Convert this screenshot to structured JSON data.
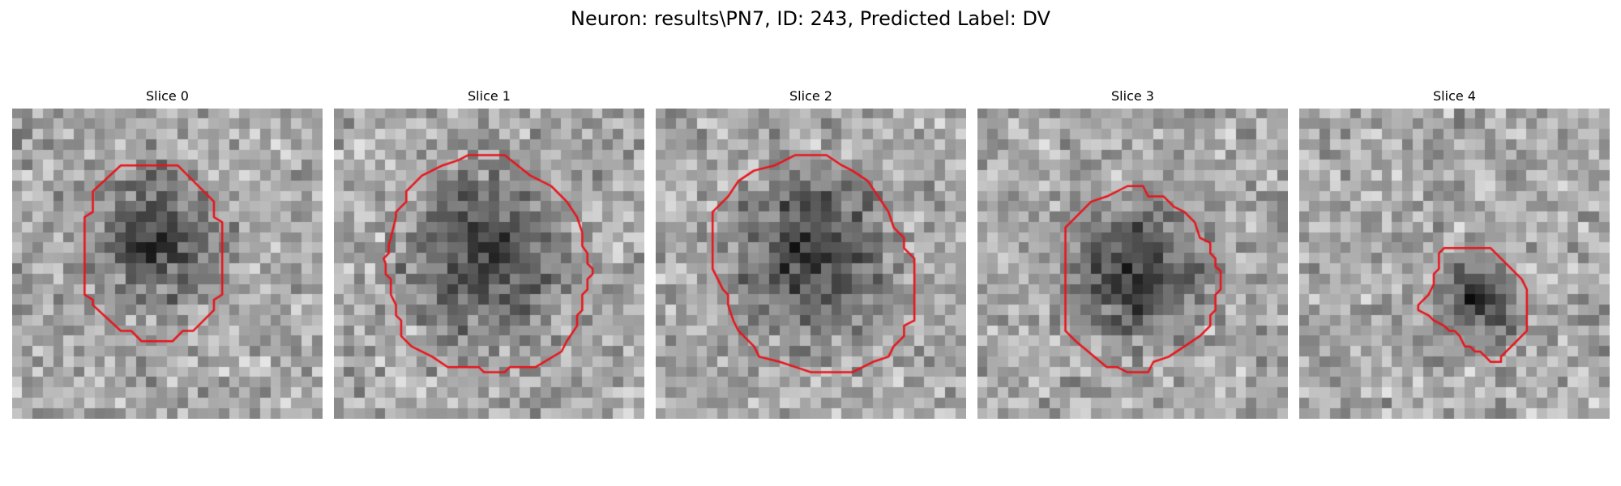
{
  "figure": {
    "title": "Neuron: results\\PN7, ID: 243, Predicted Label: DV",
    "background": "#ffffff"
  },
  "grid": {
    "size": 30,
    "colormap": "gray"
  },
  "contour": {
    "color": "#e8131a"
  },
  "slices": [
    {
      "title": "Slice 0",
      "dark_center": [
        14.0,
        12.5
      ],
      "dark_radius": 7.5,
      "seed": 11,
      "contour": [
        [
          13.5,
          5.5
        ],
        [
          16,
          5.5
        ],
        [
          19.5,
          9
        ],
        [
          19.5,
          10.5
        ],
        [
          20.3,
          11
        ],
        [
          20.3,
          18
        ],
        [
          19.5,
          18.5
        ],
        [
          19.5,
          19.5
        ],
        [
          17.5,
          21.5
        ],
        [
          16.5,
          21.5
        ],
        [
          15.5,
          22.5
        ],
        [
          12.5,
          22.5
        ],
        [
          11.5,
          21.5
        ],
        [
          10.5,
          21.5
        ],
        [
          7.8,
          19
        ],
        [
          7.8,
          18.5
        ],
        [
          7,
          18
        ],
        [
          7,
          10.5
        ],
        [
          7.8,
          10
        ],
        [
          7.8,
          8
        ],
        [
          10.5,
          5.5
        ]
      ]
    },
    {
      "title": "Slice 1",
      "dark_center": [
        14.5,
        14.5
      ],
      "dark_radius": 9.0,
      "seed": 23,
      "contour": [
        [
          13,
          4.5
        ],
        [
          16.5,
          4.5
        ],
        [
          19,
          6.5
        ],
        [
          21,
          7.5
        ],
        [
          22.5,
          9
        ],
        [
          23.5,
          10.5
        ],
        [
          24,
          12
        ],
        [
          24,
          13.3
        ],
        [
          24.5,
          14
        ],
        [
          24.5,
          15
        ],
        [
          25,
          15.5
        ],
        [
          25,
          16
        ],
        [
          24.5,
          16.5
        ],
        [
          24.5,
          17.5
        ],
        [
          24,
          18
        ],
        [
          24,
          19.5
        ],
        [
          23.5,
          20
        ],
        [
          23.5,
          21
        ],
        [
          22.5,
          22.5
        ],
        [
          22,
          23.5
        ],
        [
          19.5,
          25
        ],
        [
          17,
          25
        ],
        [
          16.5,
          25.5
        ],
        [
          14.5,
          25.5
        ],
        [
          14,
          25
        ],
        [
          11,
          25
        ],
        [
          9.5,
          24
        ],
        [
          7.5,
          23
        ],
        [
          6.5,
          22
        ],
        [
          6.5,
          20.5
        ],
        [
          6,
          20
        ],
        [
          6,
          19
        ],
        [
          5.5,
          18
        ],
        [
          5.5,
          16.5
        ],
        [
          5,
          16
        ],
        [
          5,
          15
        ],
        [
          4.8,
          14.5
        ],
        [
          5.3,
          14
        ],
        [
          5.3,
          13.2
        ],
        [
          5.5,
          12.5
        ],
        [
          6,
          10.5
        ],
        [
          6,
          10
        ],
        [
          7,
          9
        ],
        [
          7,
          8
        ],
        [
          8.5,
          6.5
        ],
        [
          10.5,
          5.5
        ],
        [
          12,
          5
        ]
      ]
    },
    {
      "title": "Slice 2",
      "dark_center": [
        15.0,
        14.0
      ],
      "dark_radius": 9.0,
      "seed": 37,
      "contour": [
        [
          13.5,
          4.5
        ],
        [
          16.5,
          4.5
        ],
        [
          18,
          5.5
        ],
        [
          19,
          6
        ],
        [
          20.5,
          7
        ],
        [
          21.5,
          8.5
        ],
        [
          22.5,
          10
        ],
        [
          23,
          11.5
        ],
        [
          24,
          12.5
        ],
        [
          24,
          13.5
        ],
        [
          25,
          14.5
        ],
        [
          25,
          20.5
        ],
        [
          24,
          21
        ],
        [
          24,
          22
        ],
        [
          23,
          23
        ],
        [
          22.5,
          24
        ],
        [
          21,
          24.5
        ],
        [
          19,
          25.5
        ],
        [
          15,
          25.5
        ],
        [
          13.5,
          25
        ],
        [
          12,
          24.5
        ],
        [
          10,
          24
        ],
        [
          9.5,
          23
        ],
        [
          8.5,
          22
        ],
        [
          8,
          21.5
        ],
        [
          7.5,
          20.5
        ],
        [
          7,
          19
        ],
        [
          7,
          18
        ],
        [
          6.5,
          17.5
        ],
        [
          6,
          16.5
        ],
        [
          5.5,
          15.5
        ],
        [
          5.5,
          10
        ],
        [
          7,
          8.5
        ],
        [
          8,
          7
        ],
        [
          9.5,
          6
        ],
        [
          11.5,
          5.5
        ],
        [
          12.5,
          5
        ]
      ]
    },
    {
      "title": "Slice 3",
      "dark_center": [
        15.5,
        16.0
      ],
      "dark_radius": 8.0,
      "seed": 53,
      "contour": [
        [
          14.5,
          7.5
        ],
        [
          16,
          7.5
        ],
        [
          16.5,
          8.5
        ],
        [
          18,
          8.5
        ],
        [
          19,
          9.5
        ],
        [
          20,
          10
        ],
        [
          21,
          11
        ],
        [
          21.5,
          12.5
        ],
        [
          22.5,
          13
        ],
        [
          22.5,
          14
        ],
        [
          23,
          14.5
        ],
        [
          23,
          15.3
        ],
        [
          23.5,
          15.7
        ],
        [
          23.5,
          17.5
        ],
        [
          23,
          18
        ],
        [
          23,
          19.5
        ],
        [
          22.5,
          20
        ],
        [
          22.5,
          21
        ],
        [
          21.5,
          22
        ],
        [
          20,
          23
        ],
        [
          18.5,
          24
        ],
        [
          17,
          24.5
        ],
        [
          16.5,
          25.5
        ],
        [
          14.5,
          25.5
        ],
        [
          13.5,
          25
        ],
        [
          12.5,
          25
        ],
        [
          9.5,
          22.5
        ],
        [
          8.5,
          21.5
        ],
        [
          8.5,
          11.5
        ],
        [
          11,
          9
        ],
        [
          12.5,
          8.5
        ]
      ]
    },
    {
      "title": "Slice 4",
      "dark_center": [
        17.5,
        18.5
      ],
      "dark_radius": 4.5,
      "seed": 71,
      "contour": [
        [
          14,
          13.5
        ],
        [
          18.5,
          13.5
        ],
        [
          20.5,
          15.5
        ],
        [
          21.5,
          16.5
        ],
        [
          22,
          17.5
        ],
        [
          22,
          21.5
        ],
        [
          21.5,
          22
        ],
        [
          21,
          22.5
        ],
        [
          19.5,
          24
        ],
        [
          19.5,
          24.5
        ],
        [
          18.5,
          24.5
        ],
        [
          18,
          24
        ],
        [
          17.5,
          23.5
        ],
        [
          17,
          23.5
        ],
        [
          16.5,
          23
        ],
        [
          16,
          23
        ],
        [
          15.5,
          22
        ],
        [
          15,
          21.5
        ],
        [
          14.5,
          21.5
        ],
        [
          14,
          21
        ],
        [
          13,
          20.5
        ],
        [
          12.5,
          20
        ],
        [
          11.5,
          19.5
        ],
        [
          11.5,
          19
        ],
        [
          12,
          18.5
        ],
        [
          12.5,
          18
        ],
        [
          13,
          17
        ],
        [
          13,
          16
        ],
        [
          13.5,
          15.5
        ],
        [
          13.5,
          14
        ]
      ]
    }
  ]
}
